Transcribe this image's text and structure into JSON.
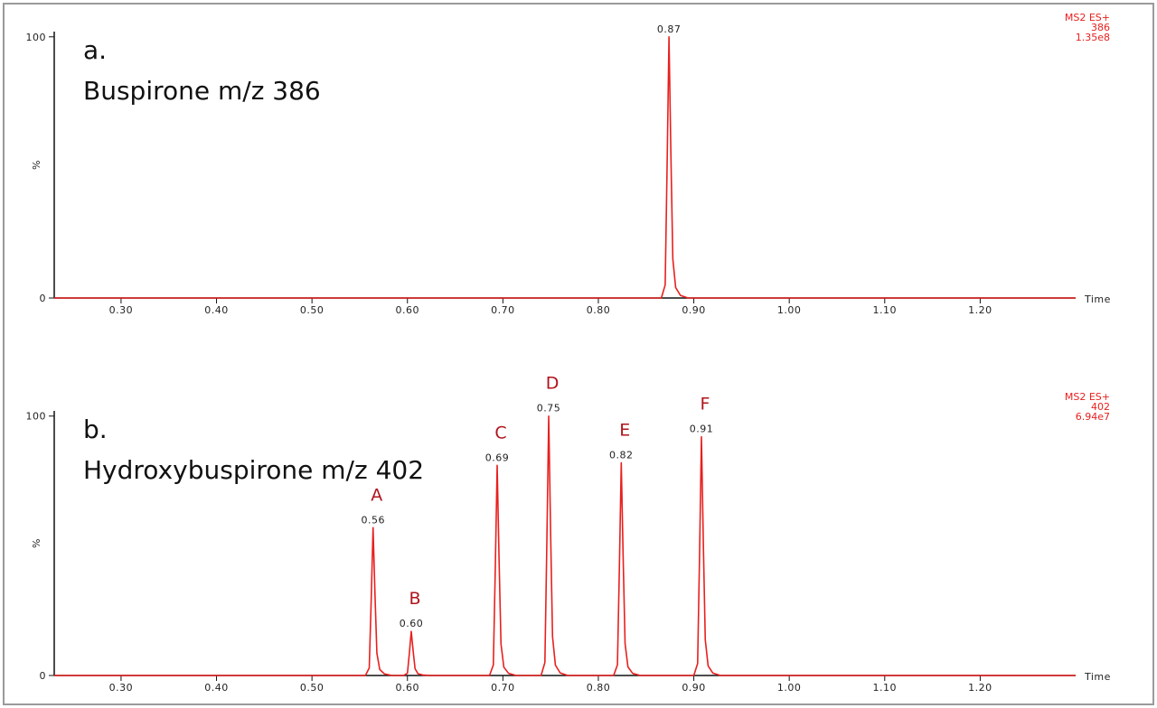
{
  "chart_data": [
    {
      "type": "line",
      "label": "a.",
      "title": "Buspirone m/z 386",
      "info": [
        "MS2 ES+",
        "386",
        "1.35e8"
      ],
      "xlabel": "Time",
      "ylabel": "%",
      "color": "#e8201e",
      "x": [
        0.23,
        0.866,
        0.87,
        0.872,
        0.874,
        0.876,
        0.878,
        0.881,
        0.886,
        0.894,
        1.3
      ],
      "values": [
        0,
        0,
        5,
        50,
        100,
        55,
        15,
        4,
        1,
        0,
        0
      ],
      "peaks": [
        {
          "label": "0.87",
          "x": 0.874,
          "value": 100
        }
      ],
      "xlim": [
        0.23,
        1.3
      ],
      "ylim": [
        0,
        102
      ],
      "xticks": [
        {
          "value": 0.3,
          "label": "0.30"
        },
        {
          "value": 0.4,
          "label": "0.40"
        },
        {
          "value": 0.5,
          "label": "0.50"
        },
        {
          "value": 0.6,
          "label": "0.60"
        },
        {
          "value": 0.7,
          "label": "0.70"
        },
        {
          "value": 0.8,
          "label": "0.80"
        },
        {
          "value": 0.9,
          "label": "0.90"
        },
        {
          "value": 1.0,
          "label": "1.00"
        },
        {
          "value": 1.1,
          "label": "1.10"
        },
        {
          "value": 1.2,
          "label": "1.20"
        }
      ],
      "yticks": [
        0,
        100
      ]
    },
    {
      "type": "line",
      "label": "b.",
      "title": "Hydroxybuspirone m/z 402",
      "info": [
        "MS2 ES+",
        "402",
        "6.94e7"
      ],
      "xlabel": "Time",
      "ylabel": "%",
      "color": "#e8201e",
      "peak_name_color": "#b0141c",
      "x": [
        0.23,
        0.556,
        0.56,
        0.562,
        0.564,
        0.566,
        0.568,
        0.571,
        0.576,
        0.584,
        0.596,
        0.6,
        0.602,
        0.604,
        0.606,
        0.608,
        0.611,
        0.616,
        0.624,
        0.686,
        0.69,
        0.692,
        0.694,
        0.696,
        0.698,
        0.701,
        0.706,
        0.714,
        0.74,
        0.744,
        0.746,
        0.748,
        0.75,
        0.752,
        0.755,
        0.76,
        0.768,
        0.816,
        0.82,
        0.822,
        0.824,
        0.826,
        0.828,
        0.831,
        0.836,
        0.844,
        0.9,
        0.904,
        0.906,
        0.908,
        0.91,
        0.912,
        0.915,
        0.92,
        0.928,
        1.3
      ],
      "values": [
        0,
        0,
        2.9,
        28.5,
        57,
        31.4,
        8.6,
        2.3,
        0.6,
        0,
        0,
        0.9,
        8.5,
        17,
        9.4,
        2.6,
        0.7,
        0.2,
        0,
        0,
        4.1,
        40.5,
        81,
        44.6,
        12.2,
        3.2,
        0.8,
        0,
        0,
        5,
        50,
        100,
        55,
        15,
        4,
        1,
        0,
        0,
        4.1,
        41,
        82,
        45.1,
        12.3,
        3.3,
        0.8,
        0,
        0,
        4.6,
        46,
        92,
        50.6,
        13.8,
        3.7,
        0.9,
        0,
        0
      ],
      "peaks": [
        {
          "name": "A",
          "label": "0.56",
          "x": 0.564,
          "value": 57
        },
        {
          "name": "B",
          "label": "0.60",
          "x": 0.604,
          "value": 17
        },
        {
          "name": "C",
          "label": "0.69",
          "x": 0.694,
          "value": 81
        },
        {
          "name": "D",
          "label": "0.75",
          "x": 0.748,
          "value": 100
        },
        {
          "name": "E",
          "label": "0.82",
          "x": 0.824,
          "value": 82
        },
        {
          "name": "F",
          "label": "0.91",
          "x": 0.908,
          "value": 92
        }
      ],
      "xlim": [
        0.23,
        1.3
      ],
      "ylim": [
        0,
        102
      ],
      "xticks": [
        {
          "value": 0.3,
          "label": "0.30"
        },
        {
          "value": 0.4,
          "label": "0.40"
        },
        {
          "value": 0.5,
          "label": "0.50"
        },
        {
          "value": 0.6,
          "label": "0.60"
        },
        {
          "value": 0.7,
          "label": "0.70"
        },
        {
          "value": 0.8,
          "label": "0.80"
        },
        {
          "value": 0.9,
          "label": "0.90"
        },
        {
          "value": 1.0,
          "label": "1.00"
        },
        {
          "value": 1.1,
          "label": "1.10"
        },
        {
          "value": 1.2,
          "label": "1.20"
        }
      ],
      "yticks": [
        0,
        100
      ]
    }
  ]
}
